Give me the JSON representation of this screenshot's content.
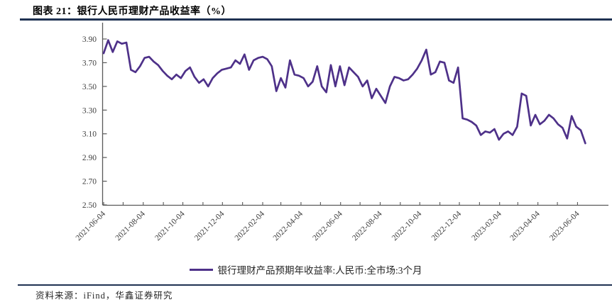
{
  "header": {
    "title": "图表 21：银行人民币理财产品收益率（%）"
  },
  "chart_data": {
    "type": "line",
    "title": "银行人民币理财产品收益率（%）",
    "xlabel": "",
    "ylabel": "",
    "ylim": [
      2.5,
      3.9
    ],
    "y_ticks": [
      3.9,
      3.7,
      3.5,
      3.3,
      3.1,
      2.9,
      2.7,
      2.5
    ],
    "x_tick_labels": [
      "2021-06-04",
      "2021-08-04",
      "2021-10-04",
      "2021-12-04",
      "2022-02-04",
      "2022-04-04",
      "2022-06-04",
      "2022-08-04",
      "2022-10-04",
      "2022-12-04",
      "2023-02-04",
      "2023-04-04",
      "2023-06-04"
    ],
    "grid": false,
    "legend_position": "bottom",
    "series": [
      {
        "name": "银行理财产品预期年收益率:人民币:全市场:3个月",
        "color": "#4E3189",
        "start_date": "2021-06-04",
        "interval_days": 7,
        "values": [
          3.78,
          3.89,
          3.79,
          3.88,
          3.86,
          3.87,
          3.64,
          3.62,
          3.67,
          3.74,
          3.75,
          3.71,
          3.68,
          3.63,
          3.59,
          3.56,
          3.6,
          3.57,
          3.63,
          3.66,
          3.58,
          3.53,
          3.56,
          3.5,
          3.57,
          3.61,
          3.64,
          3.65,
          3.66,
          3.72,
          3.69,
          3.77,
          3.64,
          3.72,
          3.74,
          3.75,
          3.73,
          3.67,
          3.46,
          3.57,
          3.49,
          3.72,
          3.6,
          3.59,
          3.57,
          3.5,
          3.54,
          3.67,
          3.5,
          3.45,
          3.68,
          3.5,
          3.67,
          3.51,
          3.66,
          3.62,
          3.58,
          3.5,
          3.55,
          3.4,
          3.48,
          3.42,
          3.36,
          3.5,
          3.58,
          3.57,
          3.55,
          3.56,
          3.6,
          3.65,
          3.72,
          3.81,
          3.6,
          3.62,
          3.71,
          3.7,
          3.55,
          3.53,
          3.66,
          3.23,
          3.22,
          3.2,
          3.17,
          3.09,
          3.12,
          3.11,
          3.14,
          3.05,
          3.1,
          3.12,
          3.09,
          3.16,
          3.44,
          3.42,
          3.17,
          3.26,
          3.18,
          3.21,
          3.26,
          3.23,
          3.18,
          3.15,
          3.06,
          3.25,
          3.16,
          3.13,
          3.02
        ]
      }
    ]
  },
  "source": {
    "text": "资料来源：iFind，华鑫证券研究"
  },
  "colors": {
    "accent_line": "#4E3189",
    "rule": "#1F3252",
    "axis": "#595959",
    "tick_text": "#404040"
  }
}
